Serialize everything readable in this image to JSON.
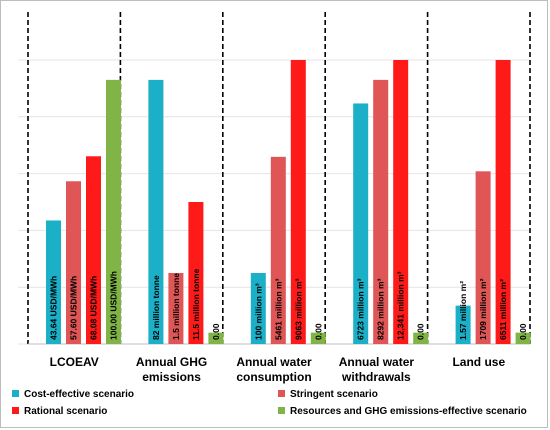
{
  "chart_data": {
    "type": "bar",
    "categories": [
      "LCOEAV",
      "Annual GHG emissions",
      "Annual water consumption",
      "Annual water withdrawals",
      "Land use"
    ],
    "category_lines": [
      [
        "LCOEAV"
      ],
      [
        "Annual GHG",
        "emissions"
      ],
      [
        "Annual water",
        "consumption"
      ],
      [
        "Annual water",
        "withdrawals"
      ],
      [
        "Land use"
      ]
    ],
    "value_unit": "relative index (max = 100)",
    "ylim": [
      0,
      100
    ],
    "grid": true,
    "legend_position": "bottom",
    "series": [
      {
        "name": "Cost-effective scenario",
        "color": "#1bafc8",
        "values": [
          43.5,
          93.0,
          25.0,
          84.7,
          13.5
        ],
        "labels": [
          "43.64 USD/MWh",
          "82 million tonne",
          "100 million m³",
          "6723 million m³",
          "1.57 million m²"
        ]
      },
      {
        "name": "Stringent scenario",
        "color": "#e05555",
        "values": [
          57.3,
          25.0,
          65.9,
          93.0,
          60.8
        ],
        "labels": [
          "57.60 USD/MWh",
          "1.5 million tonne",
          "5461 million m³",
          "8292 million m³",
          "1709 million m²"
        ]
      },
      {
        "name": "Rational scenario",
        "color": "#ff1a1a",
        "values": [
          66.1,
          50.0,
          100.0,
          100.0,
          100.0
        ],
        "labels": [
          "68.08 USD/MWh",
          "11.5 million tonne",
          "9063 million m³",
          "12,341 million m³",
          "6511 million m²"
        ]
      },
      {
        "name": "Resources and GHG emissions-effective scenario",
        "color": "#80b446",
        "values": [
          93.0,
          4.0,
          4.0,
          4.0,
          4.0
        ],
        "labels": [
          "100.00 USD/MWh",
          "0.00",
          "0.00",
          "0.00",
          "0.00"
        ]
      }
    ]
  }
}
